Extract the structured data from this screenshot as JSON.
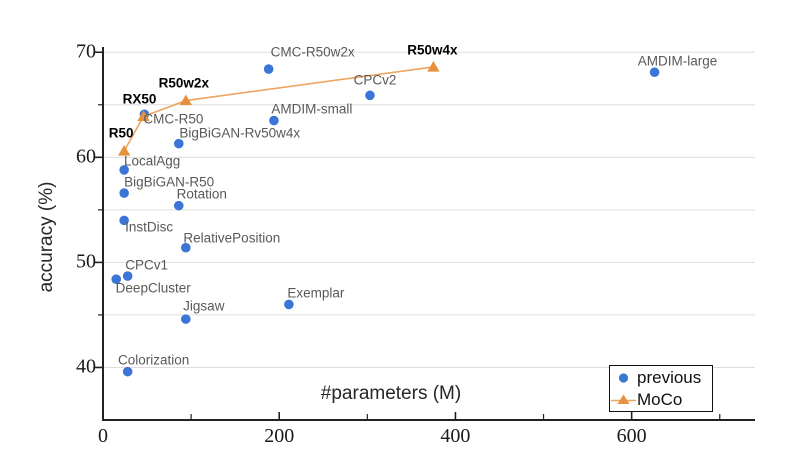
{
  "figure": {
    "description": "Scatter plot comparing linear classification accuracy vs model size for self-supervised methods"
  },
  "chart_data": {
    "type": "scatter",
    "title": "",
    "xlabel": "#parameters (M)",
    "ylabel": "accuracy (%)",
    "xlim": [
      0,
      740
    ],
    "ylim": [
      35,
      70.5
    ],
    "x_major_ticks": [
      0,
      200,
      400,
      600
    ],
    "x_minor_ticks": [
      100,
      300,
      500,
      700
    ],
    "y_major_ticks": [
      40,
      50,
      60,
      70
    ],
    "y_minor_ticks": [
      45,
      55,
      65
    ],
    "grid": {
      "horizontal_lines_at": [
        40,
        45,
        50,
        55,
        60,
        65,
        70
      ],
      "vertical": false,
      "color": "#dedede"
    },
    "legend": {
      "position": "lower right",
      "entries": [
        {
          "label": "previous",
          "marker": "circle",
          "color": "#3b76d6"
        },
        {
          "label": "MoCo",
          "marker": "triangle-line",
          "color": "#e8913c"
        }
      ]
    },
    "series": [
      {
        "name": "previous",
        "marker": "circle",
        "color": "#3b76d6",
        "connected": false,
        "points": [
          {
            "label": "Colorization",
            "x": 28,
            "y": 39.6,
            "label_dx": 26,
            "label_dy": -12
          },
          {
            "label": "DeepCluster",
            "x": 15,
            "y": 48.4,
            "label_dx": 37,
            "label_dy": 9
          },
          {
            "label": "CPCv1",
            "x": 28,
            "y": 48.7,
            "label_dx": 19,
            "label_dy": -11
          },
          {
            "label": "InstDisc",
            "x": 24,
            "y": 54.0,
            "label_dx": 25,
            "label_dy": 7
          },
          {
            "label": "BigBiGAN-R50",
            "x": 24,
            "y": 56.6,
            "label_dx": 45,
            "label_dy": -11
          },
          {
            "label": "LocalAgg",
            "x": 24,
            "y": 58.8,
            "label_dx": 28,
            "label_dy": -9
          },
          {
            "label": "Rotation",
            "x": 86,
            "y": 55.4,
            "label_dx": 23,
            "label_dy": -12
          },
          {
            "label": "RelativePosition",
            "x": 94,
            "y": 51.4,
            "label_dx": 46,
            "label_dy": -10
          },
          {
            "label": "Jigsaw",
            "x": 94,
            "y": 44.6,
            "label_dx": 18,
            "label_dy": -13
          },
          {
            "label": "Exemplar",
            "x": 211,
            "y": 46.0,
            "label_dx": 27,
            "label_dy": -11
          },
          {
            "label": "CMC-R50",
            "x": 47,
            "y": 64.1,
            "label_dx": 29,
            "label_dy": 5
          },
          {
            "label": "BigBiGAN-Rv50w4x",
            "x": 86,
            "y": 61.3,
            "label_dx": 61,
            "label_dy": -11
          },
          {
            "label": "AMDIM-small",
            "x": 194,
            "y": 63.5,
            "label_dx": 38,
            "label_dy": -12
          },
          {
            "label": "CMC-R50w2x",
            "x": 188,
            "y": 68.4,
            "label_dx": 44,
            "label_dy": -17
          },
          {
            "label": "CPCv2",
            "x": 303,
            "y": 65.9,
            "label_dx": 5,
            "label_dy": -15
          },
          {
            "label": "AMDIM-large",
            "x": 626,
            "y": 68.1,
            "label_dx": 23,
            "label_dy": -11
          }
        ]
      },
      {
        "name": "MoCo",
        "marker": "triangle",
        "color": "#e8913c",
        "line_color": "#eda55f",
        "connected": true,
        "points": [
          {
            "label": "R50",
            "x": 24,
            "y": 60.6,
            "label_dx": -3,
            "label_dy": -18
          },
          {
            "label": "RX50",
            "x": 46,
            "y": 63.9,
            "label_dx": -4,
            "label_dy": -17
          },
          {
            "label": "R50w2x",
            "x": 94,
            "y": 65.4,
            "label_dx": -2,
            "label_dy": -18
          },
          {
            "label": "R50w4x",
            "x": 375,
            "y": 68.6,
            "label_dx": -1,
            "label_dy": -17
          }
        ]
      }
    ]
  },
  "colors": {
    "previous_marker": "#3b76d6",
    "moco_marker": "#e8913c",
    "moco_line": "#eda55f",
    "grid": "#dedede",
    "spine": "#222222",
    "tick_text": "#1a1a1a",
    "point_label_text": "#595959",
    "moco_label_text": "#000000"
  }
}
